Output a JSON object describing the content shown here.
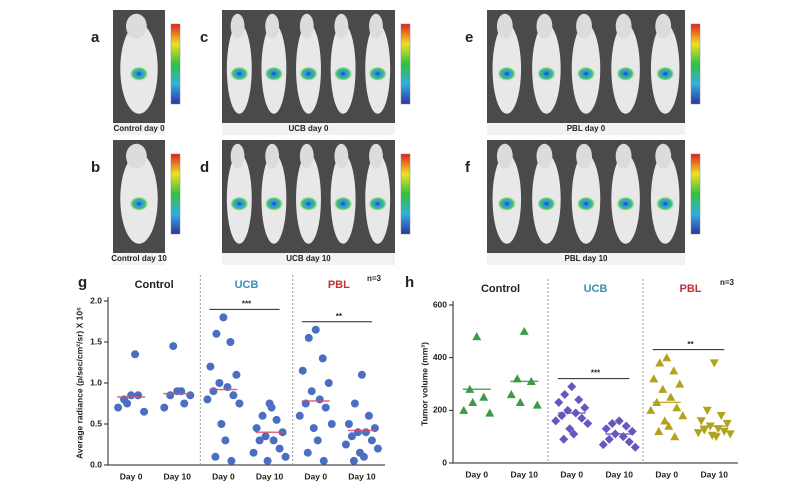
{
  "panels": [
    {
      "label": "a",
      "caption": "Control day 0"
    },
    {
      "label": "b",
      "caption": "Control day 10"
    },
    {
      "label": "c",
      "caption": "UCB day 0"
    },
    {
      "label": "d",
      "caption": "UCB day 10"
    },
    {
      "label": "e",
      "caption": "PBL day 0"
    },
    {
      "label": "f",
      "caption": "PBL day 10"
    }
  ],
  "chart_data": [
    {
      "type": "dotplot",
      "panel_label": "g",
      "ylabel": "Average radiance (p/sec/cm²/sr) X 10⁶",
      "note": "n=3",
      "categories": [
        "Day 0",
        "Day 10",
        "Day 0",
        "Day 10",
        "Day 0",
        "Day 10"
      ],
      "colors": [
        "#4a6fc0",
        "#4a6fc0",
        "#4a6fc0",
        "#4a6fc0",
        "#4a6fc0",
        "#4a6fc0"
      ],
      "markers": [
        "circle",
        "circle",
        "circle",
        "circle",
        "circle",
        "circle"
      ],
      "mean_color": "#d9506a",
      "points": [
        [
          0.85,
          0.8,
          0.85,
          0.7,
          0.65,
          0.75,
          1.35
        ],
        [
          0.9,
          0.85,
          0.75,
          0.7,
          0.85,
          1.45,
          0.9
        ],
        [
          1.8,
          1.6,
          1.5,
          1.2,
          1.1,
          1.0,
          0.95,
          0.9,
          0.85,
          0.8,
          0.75,
          0.5,
          0.3,
          0.1,
          0.05
        ],
        [
          0.75,
          0.6,
          0.55,
          0.45,
          0.4,
          0.35,
          0.3,
          0.3,
          0.2,
          0.15,
          0.1,
          0.05,
          0.7
        ],
        [
          1.65,
          1.55,
          1.3,
          1.15,
          1.0,
          0.9,
          0.8,
          0.75,
          0.7,
          0.6,
          0.5,
          0.45,
          0.3,
          0.15,
          0.05
        ],
        [
          1.1,
          0.75,
          0.6,
          0.5,
          0.45,
          0.4,
          0.4,
          0.35,
          0.3,
          0.25,
          0.2,
          0.15,
          0.1,
          0.05
        ]
      ],
      "means": [
        0.83,
        0.87,
        0.92,
        0.4,
        0.78,
        0.42
      ],
      "groups": [
        {
          "name": "Control",
          "color": "#222222",
          "categories": [
            0,
            1
          ]
        },
        {
          "name": "UCB",
          "color": "#3a8fb0",
          "categories": [
            2,
            3
          ],
          "significance": "***"
        },
        {
          "name": "PBL",
          "color": "#c0303a",
          "categories": [
            4,
            5
          ],
          "significance": "**"
        }
      ],
      "ylim": [
        0,
        2.0
      ],
      "yticks": [
        {
          "value": 0,
          "label": "0.0"
        },
        0.5,
        {
          "value": 1,
          "label": "1.0"
        },
        1.5,
        {
          "value": 2,
          "label": "2.0"
        }
      ]
    },
    {
      "type": "dotplot",
      "panel_label": "h",
      "ylabel": "Tumor volume (mm³)",
      "note": "n=3",
      "categories": [
        "Day 0",
        "Day 10",
        "Day 0",
        "Day 10",
        "Day 0",
        "Day 10"
      ],
      "colors": [
        "#3f9a48",
        "#3f9a48",
        "#6a55c0",
        "#6a55c0",
        "#b3a21e",
        "#b3a21e"
      ],
      "markers": [
        "triangle",
        "triangle",
        "diamond",
        "diamond",
        "triangle",
        "triangle-down"
      ],
      "points": [
        [
          480,
          280,
          250,
          200,
          190,
          230
        ],
        [
          500,
          320,
          310,
          260,
          220,
          230
        ],
        [
          290,
          260,
          240,
          230,
          210,
          200,
          190,
          180,
          170,
          160,
          150,
          130,
          110,
          90
        ],
        [
          160,
          150,
          140,
          130,
          120,
          110,
          100,
          90,
          80,
          70,
          60
        ],
        [
          400,
          380,
          350,
          320,
          300,
          280,
          250,
          230,
          210,
          200,
          180,
          160,
          140,
          120,
          100
        ],
        [
          380,
          200,
          180,
          160,
          150,
          140,
          130,
          125,
          120,
          115,
          110,
          105,
          100
        ]
      ],
      "means": [
        280,
        310,
        190,
        110,
        230,
        140
      ],
      "groups": [
        {
          "name": "Control",
          "color": "#222222",
          "categories": [
            0,
            1
          ]
        },
        {
          "name": "UCB",
          "color": "#3a8fb0",
          "categories": [
            2,
            3
          ],
          "significance": "***"
        },
        {
          "name": "PBL",
          "color": "#c0303a",
          "categories": [
            4,
            5
          ],
          "significance": "**"
        }
      ],
      "ylim": [
        0,
        600
      ],
      "yticks": [
        0,
        200,
        400,
        600
      ]
    }
  ]
}
